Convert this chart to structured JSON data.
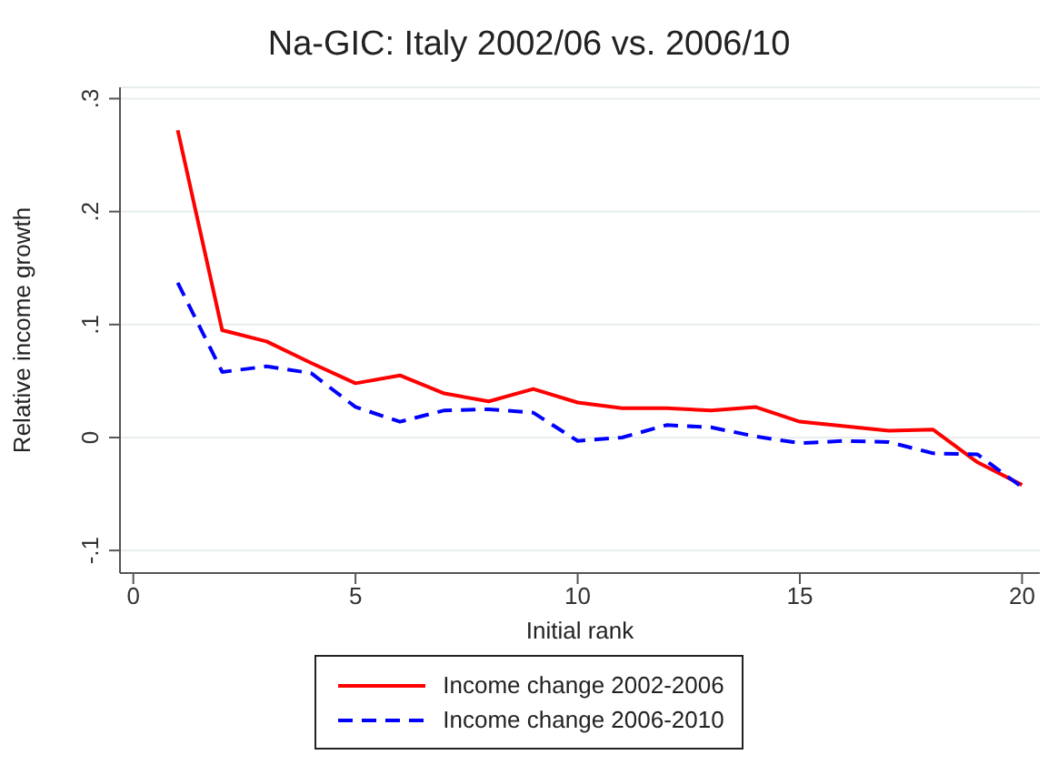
{
  "chart_data": {
    "type": "line",
    "title": "Na-GIC: Italy 2002/06 vs. 2006/10",
    "xlabel": "Initial rank",
    "ylabel": "Relative income growth",
    "x": [
      1,
      2,
      3,
      4,
      5,
      6,
      7,
      8,
      9,
      10,
      11,
      12,
      13,
      14,
      15,
      16,
      17,
      18,
      19,
      20
    ],
    "series": [
      {
        "name": "Income change 2002-2006",
        "color": "#ff0000",
        "line_style": "solid",
        "values": [
          0.272,
          0.095,
          0.085,
          0.066,
          0.048,
          0.055,
          0.039,
          0.032,
          0.043,
          0.031,
          0.026,
          0.026,
          0.024,
          0.027,
          0.014,
          0.01,
          0.006,
          0.007,
          -0.022,
          -0.042
        ]
      },
      {
        "name": "Income change 2006-2010",
        "color": "#0000ff",
        "line_style": "dashed",
        "values": [
          0.137,
          0.058,
          0.063,
          0.057,
          0.027,
          0.014,
          0.024,
          0.025,
          0.022,
          -0.003,
          0.0,
          0.011,
          0.009,
          0.001,
          -0.005,
          -0.003,
          -0.004,
          -0.014,
          -0.015,
          -0.044
        ]
      }
    ],
    "xlim": [
      -0.3,
      20.4
    ],
    "xticks": [
      0,
      5,
      10,
      15,
      20
    ],
    "ylim": [
      -0.12,
      0.31
    ],
    "yticks": [
      {
        "value": -0.1,
        "label": "-.1"
      },
      0,
      {
        "value": 0.1,
        "label": ".1"
      },
      {
        "value": 0.2,
        "label": ".2"
      },
      {
        "value": 0.3,
        "label": ".3"
      }
    ],
    "grid": "y",
    "legend": "bottom",
    "marker": "none"
  }
}
